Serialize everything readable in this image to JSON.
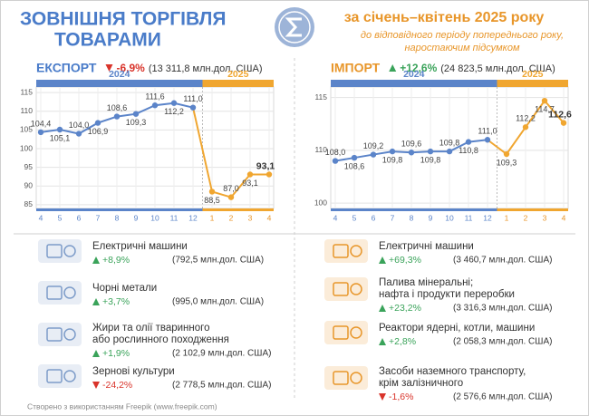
{
  "header": {
    "title": [
      "ЗОВНІШНЯ ТОРГІВЛЯ",
      "ТОВАРАМИ"
    ],
    "subtitle": "за січень–квітень 2025 року",
    "note": [
      "до відповідного періоду попереднього року,",
      "наростаючим підсумком"
    ]
  },
  "chart_data": [
    {
      "type": "line",
      "title": "ЕКСПОРТ",
      "change": "-6,9%",
      "total": "(13 311,8 млн.дол. США)",
      "periods": [
        {
          "label": "2024",
          "color": "#5b84c9"
        },
        {
          "label": "2025",
          "color": "#f0a630"
        }
      ],
      "categories": [
        "4",
        "5",
        "6",
        "7",
        "8",
        "9",
        "10",
        "11",
        "12",
        "1",
        "2",
        "3",
        "4"
      ],
      "values": [
        104.4,
        105.1,
        104.0,
        106.9,
        108.6,
        109.3,
        111.6,
        112.2,
        111.0,
        88.5,
        87.0,
        93.1,
        93.1
      ],
      "value_labels": [
        "104,4",
        "105,1",
        "104,0",
        "106,9",
        "108,6",
        "109,3",
        "111,6",
        "112,2",
        "111,0",
        "88,5",
        "87,0",
        "93,1",
        "93,1"
      ],
      "ylim": [
        84,
        116.5
      ],
      "yticks": [
        85,
        90,
        95,
        100,
        105,
        110,
        115
      ],
      "grid": true
    },
    {
      "type": "line",
      "title": "ІМПОРТ",
      "change": "+12,6%",
      "total": "(24 823,5 млн.дол. США)",
      "periods": [
        {
          "label": "2024",
          "color": "#5b84c9"
        },
        {
          "label": "2025",
          "color": "#f0a630"
        }
      ],
      "categories": [
        "4",
        "5",
        "6",
        "7",
        "8",
        "9",
        "10",
        "11",
        "12",
        "1",
        "2",
        "3",
        "4"
      ],
      "values": [
        108.0,
        108.6,
        109.2,
        109.8,
        109.6,
        109.8,
        109.8,
        110.8,
        111.0,
        109.3,
        112.2,
        114.7,
        112.6
      ],
      "value_labels": [
        "108,0",
        "108,6",
        "109,2",
        "109,8",
        "109,6",
        "109,8",
        "109,8",
        "110,8",
        "111,0",
        "109,3",
        "112,2",
        "114,7",
        "112,6"
      ],
      "ylim": [
        99,
        116
      ],
      "yticks": [
        100,
        110,
        115
      ],
      "broken_axis": true,
      "grid": true
    }
  ],
  "items": {
    "export": [
      {
        "name": [
          "Електричні машини"
        ],
        "change": "+8,9%",
        "value": "(792,5 млн.дол. США)"
      },
      {
        "name": [
          "Чорні метали"
        ],
        "change": "+3,7%",
        "value": "(995,0 млн.дол. США)"
      },
      {
        "name": [
          "Жири та олії тваринного",
          "або рослинного походження"
        ],
        "change": "+1,9%",
        "value": "(2 102,9 млн.дол. США)"
      },
      {
        "name": [
          "Зернові культури"
        ],
        "change": "-24,2%",
        "value": "(2 778,5 млн.дол. США)"
      }
    ],
    "import": [
      {
        "name": [
          "Електричні машини"
        ],
        "change": "+69,3%",
        "value": "(3 460,7 млн.дол. США)"
      },
      {
        "name": [
          "Палива мінеральні;",
          "нафта і продукти переробки"
        ],
        "change": "+23,2%",
        "value": "(3 316,3 млн.дол. США)"
      },
      {
        "name": [
          "Реактори ядерні, котли, машини"
        ],
        "change": "+2,8%",
        "value": "(2 058,3 млн.дол. США)"
      },
      {
        "name": [
          "Засоби наземного транспорту,",
          "крім залізничного"
        ],
        "change": "-1,6%",
        "value": "(2 576,6 млн.дол. США)"
      }
    ]
  },
  "footer": "Створено з використанням Freepik (www.freepik.com)"
}
